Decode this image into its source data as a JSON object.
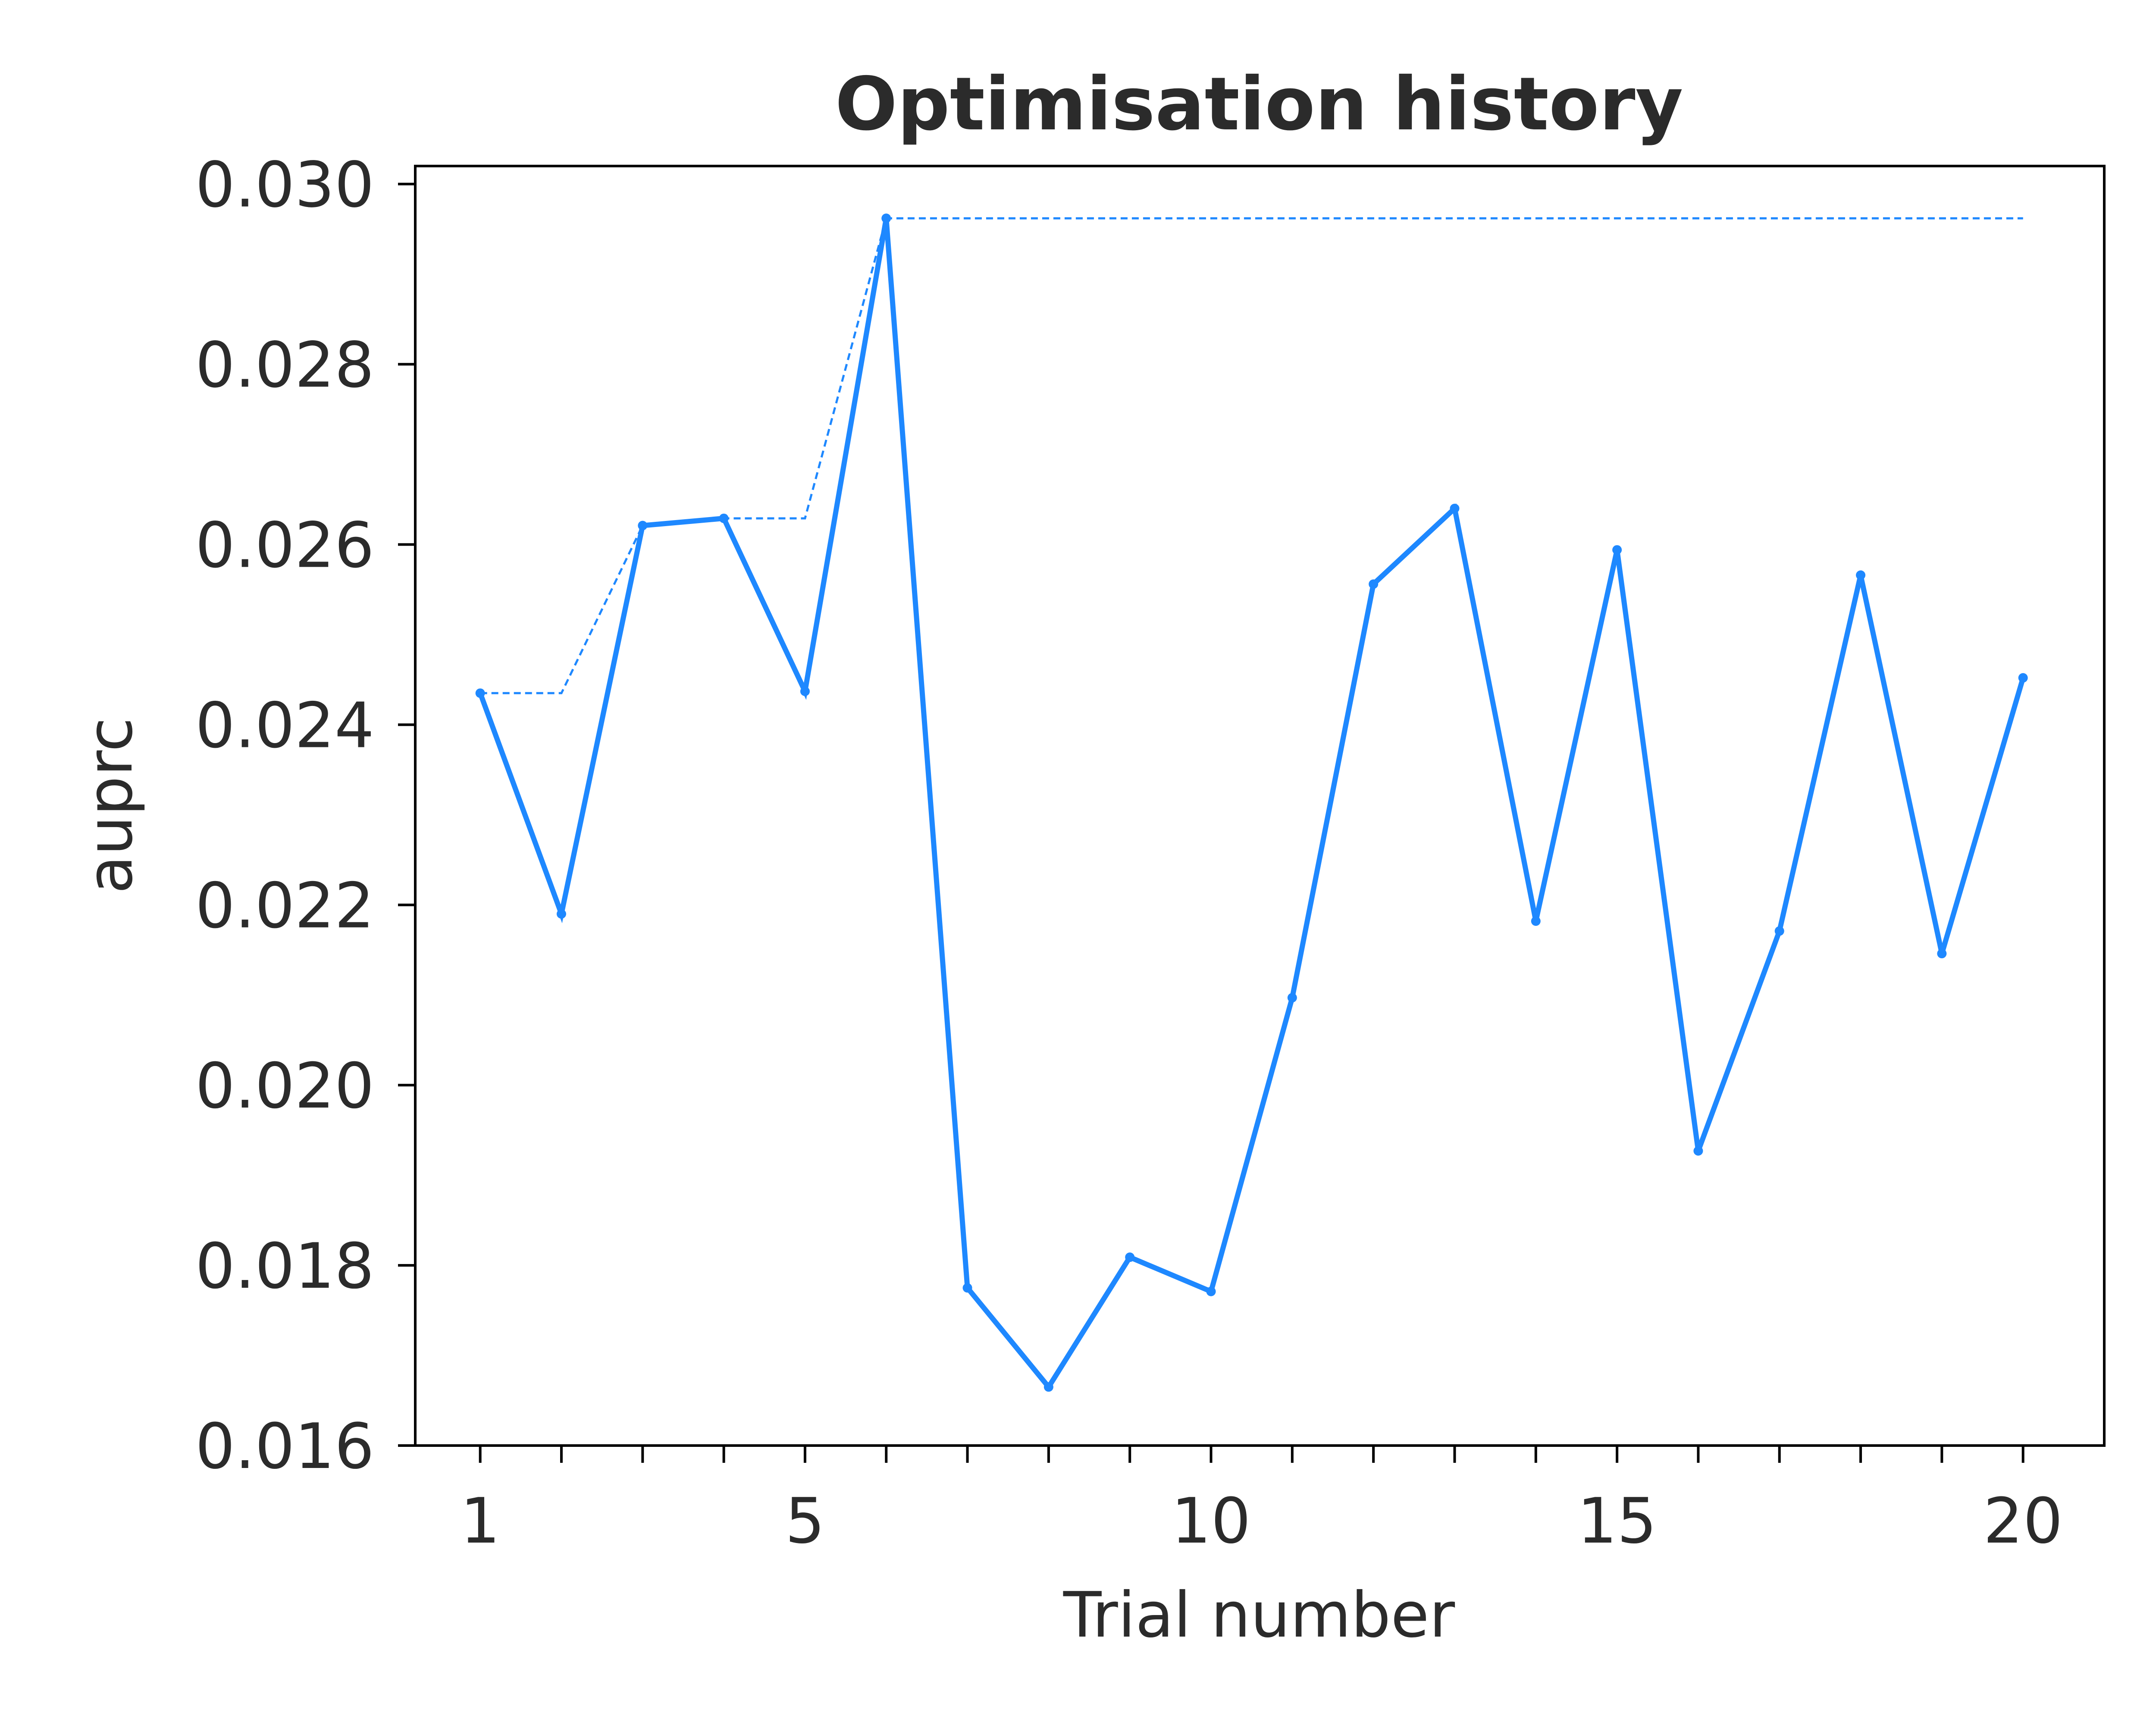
{
  "chart_data": {
    "type": "line",
    "title": "Optimisation history",
    "xlabel": "Trial number",
    "ylabel": "auprc",
    "xlim": [
      0.2,
      21.0
    ],
    "ylim": [
      0.016,
      0.0302
    ],
    "x_ticks": [
      1,
      2,
      3,
      4,
      5,
      6,
      7,
      8,
      9,
      10,
      11,
      12,
      13,
      14,
      15,
      16,
      17,
      18,
      19,
      20
    ],
    "x_tick_labels": {
      "1": "1",
      "5": "5",
      "10": "10",
      "15": "15",
      "20": "20"
    },
    "y_ticks": [
      0.016,
      0.018,
      0.02,
      0.022,
      0.024,
      0.026,
      0.028,
      0.03
    ],
    "y_tick_labels": [
      "0.016",
      "0.018",
      "0.020",
      "0.022",
      "0.024",
      "0.026",
      "0.028",
      "0.030"
    ],
    "grid": false,
    "colors": {
      "series": "#1e88ff",
      "text": "#2b2b2b",
      "axis": "#000000"
    },
    "series": [
      {
        "style": "solid",
        "x": [
          1,
          2,
          3,
          4,
          5,
          6,
          7,
          8,
          9,
          10,
          11,
          12,
          13,
          14,
          15,
          16,
          17,
          18,
          19,
          20
        ],
        "values": [
          0.02435,
          0.0219,
          0.02621,
          0.02629,
          0.02437,
          0.02962,
          0.01775,
          0.01665,
          0.01809,
          0.01771,
          0.02097,
          0.02556,
          0.0264,
          0.02182,
          0.02594,
          0.01927,
          0.02171,
          0.02566,
          0.02146,
          0.02452
        ]
      },
      {
        "style": "dashed",
        "x": [
          1,
          2,
          3,
          4,
          5,
          6,
          7,
          8,
          9,
          10,
          11,
          12,
          13,
          14,
          15,
          16,
          17,
          18,
          19,
          20
        ],
        "values": [
          0.02435,
          0.02435,
          0.02621,
          0.02629,
          0.02629,
          0.02962,
          0.02962,
          0.02962,
          0.02962,
          0.02962,
          0.02962,
          0.02962,
          0.02962,
          0.02962,
          0.02962,
          0.02962,
          0.02962,
          0.02962,
          0.02962,
          0.02962
        ]
      }
    ]
  }
}
